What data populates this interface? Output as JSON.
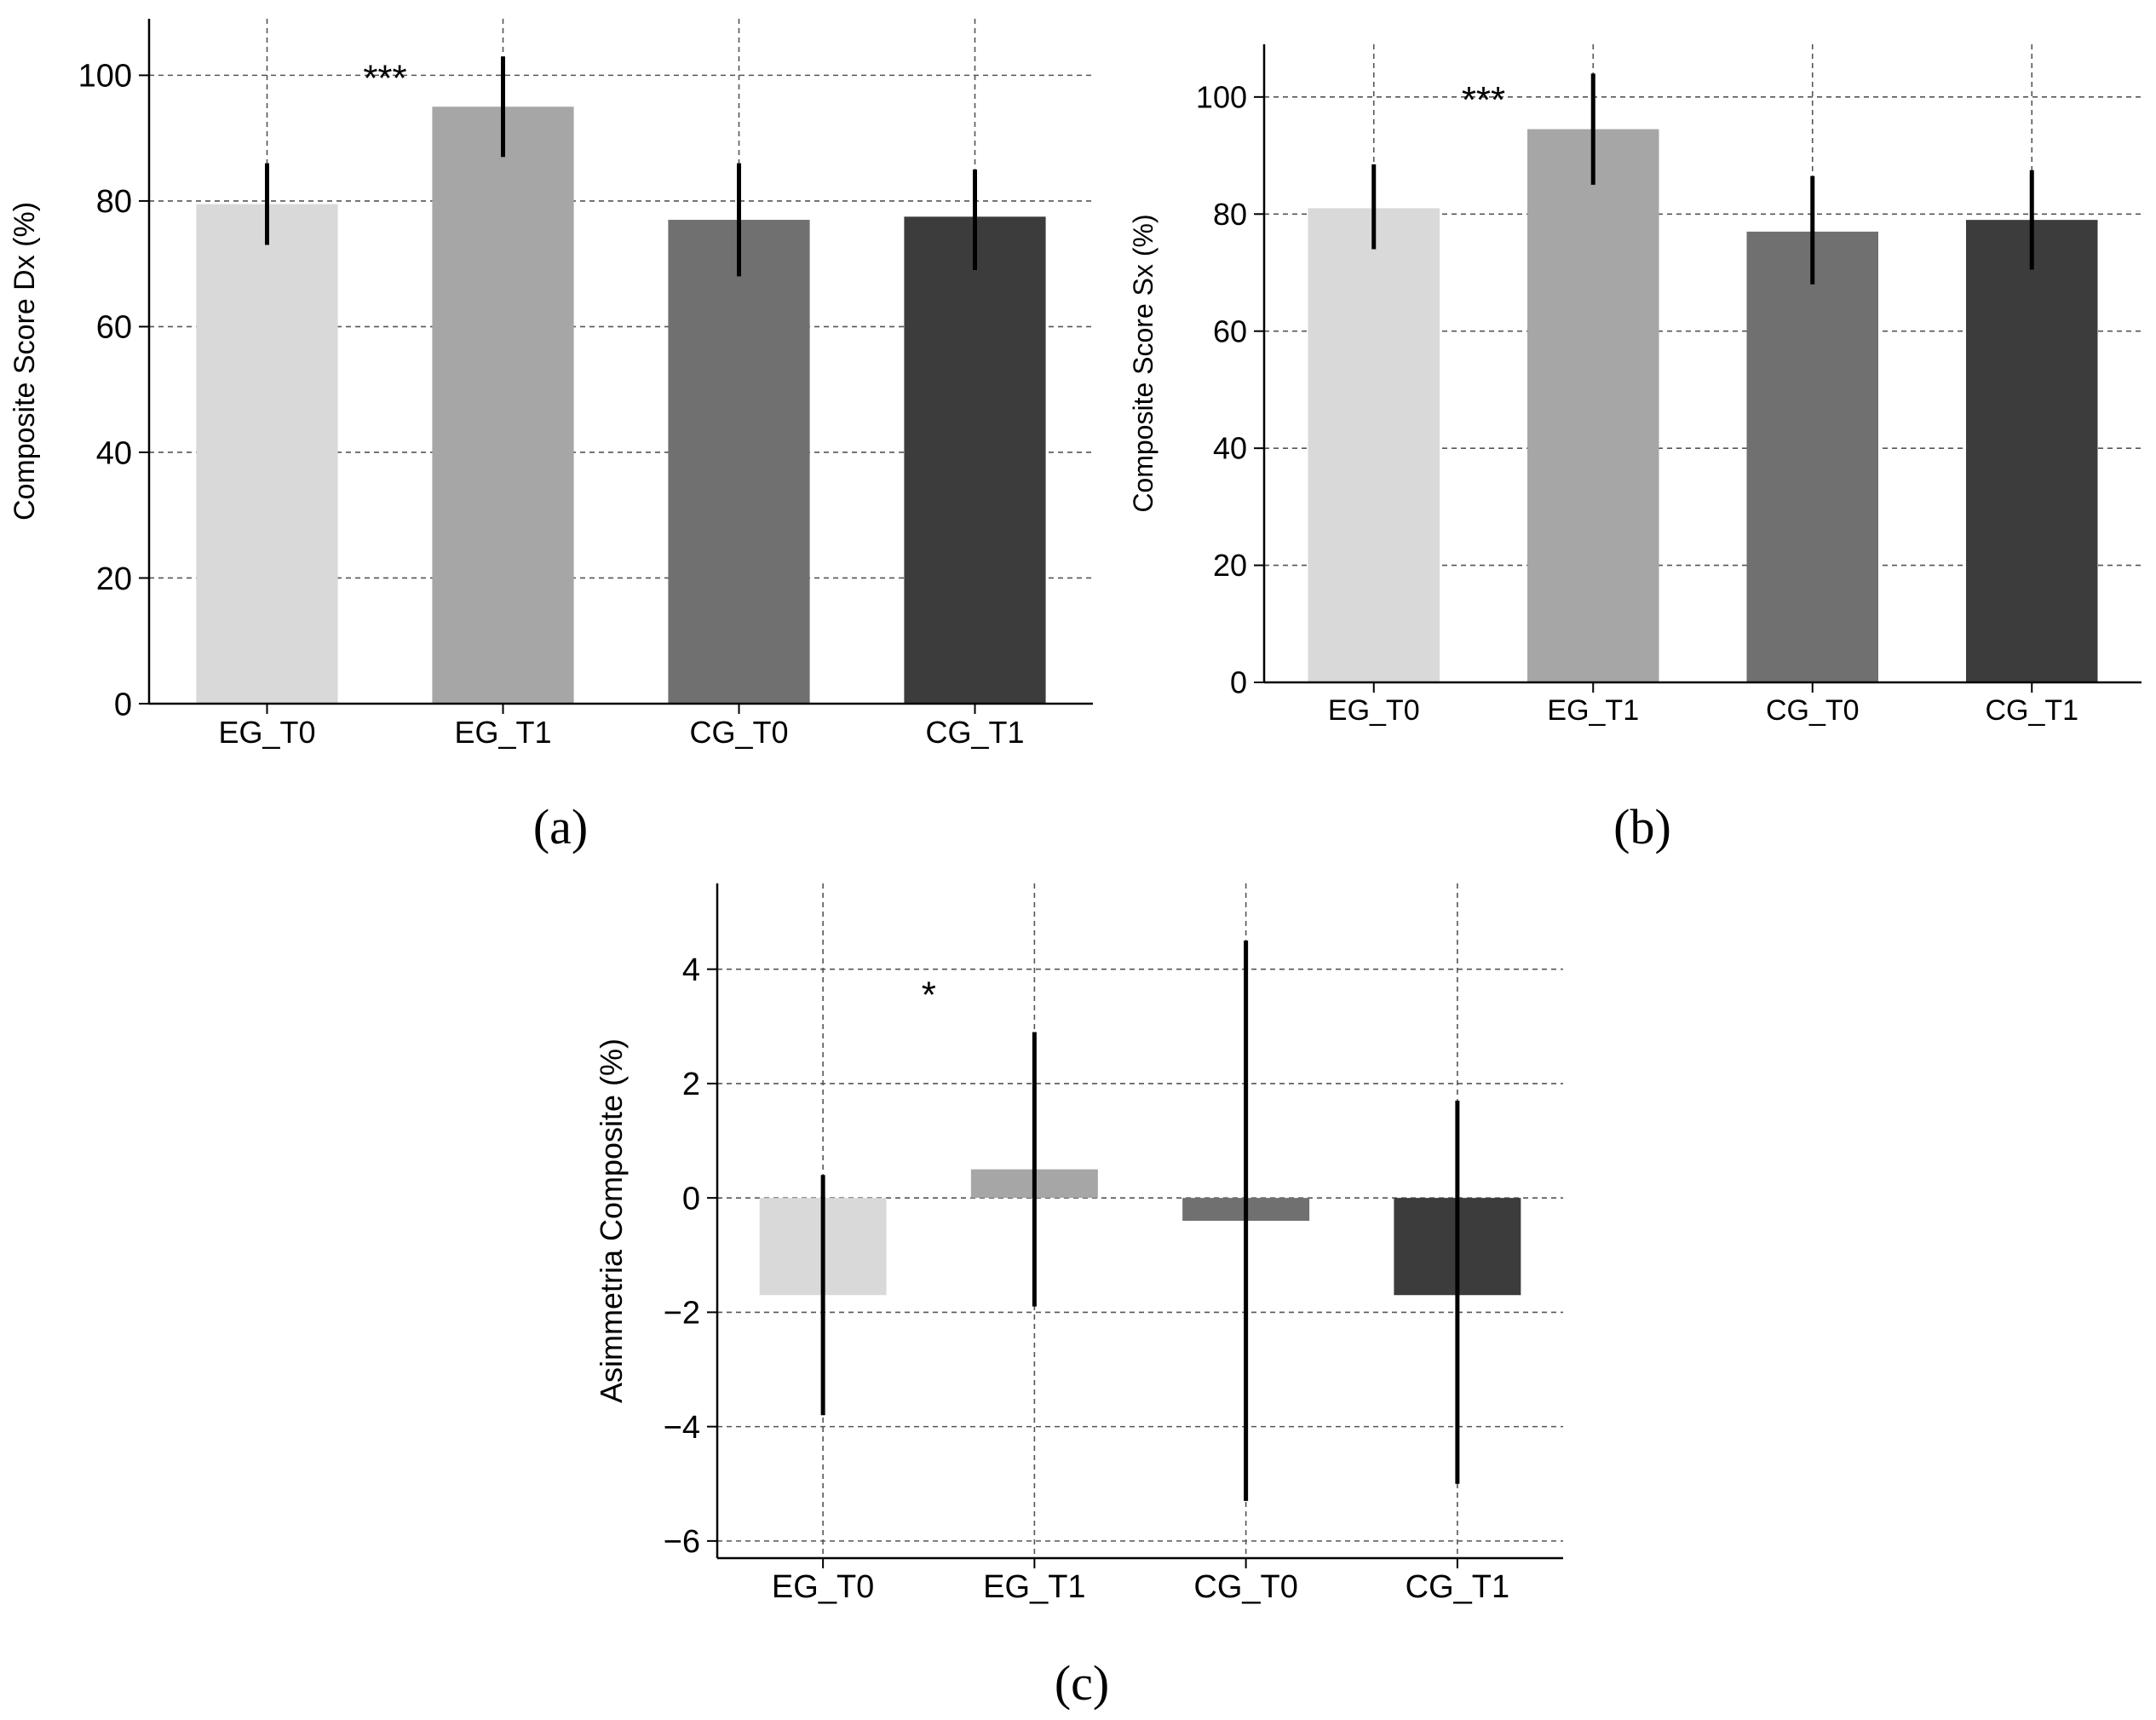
{
  "figure": {
    "charts": [
      {
        "id": "a",
        "panel_label": "(a)",
        "chart_data": {
          "type": "bar",
          "categories": [
            "EG_T0",
            "EG_T1",
            "CG_T0",
            "CG_T1"
          ],
          "values": [
            79.5,
            95.0,
            77.0,
            77.5
          ],
          "errors": [
            [
              73,
              86
            ],
            [
              87,
              103
            ],
            [
              68,
              86
            ],
            [
              69,
              85
            ]
          ],
          "colors": [
            "#d9d9d9",
            "#a6a6a6",
            "#707070",
            "#3c3c3c"
          ],
          "ylabel": "Composite Score Dx (%)",
          "xlabel": "",
          "ylim": [
            0,
            109
          ],
          "yticks": [
            0,
            20,
            40,
            60,
            80,
            100
          ],
          "ytick_labels": [
            "0",
            "20",
            "40",
            "60",
            "80",
            "100"
          ],
          "grid": true,
          "annotation": {
            "text": "***",
            "category_index": 0.5,
            "y": 100
          }
        }
      },
      {
        "id": "b",
        "panel_label": "(b)",
        "chart_data": {
          "type": "bar",
          "categories": [
            "EG_T0",
            "EG_T1",
            "CG_T0",
            "CG_T1"
          ],
          "values": [
            81.0,
            94.5,
            77.0,
            79.0
          ],
          "errors": [
            [
              74,
              88.5
            ],
            [
              85,
              104
            ],
            [
              68,
              86.5
            ],
            [
              70.5,
              87.5
            ]
          ],
          "colors": [
            "#d9d9d9",
            "#a6a6a6",
            "#707070",
            "#3c3c3c"
          ],
          "ylabel": "Composite Score Sx (%)",
          "xlabel": "",
          "ylim": [
            0,
            109
          ],
          "yticks": [
            0,
            20,
            40,
            60,
            80,
            100
          ],
          "ytick_labels": [
            "0",
            "20",
            "40",
            "60",
            "80",
            "100"
          ],
          "grid": true,
          "annotation": {
            "text": "***",
            "category_index": 0.5,
            "y": 100
          }
        }
      },
      {
        "id": "c",
        "panel_label": "(c)",
        "chart_data": {
          "type": "bar",
          "categories": [
            "EG_T0",
            "EG_T1",
            "CG_T0",
            "CG_T1"
          ],
          "values": [
            -1.7,
            0.5,
            -0.4,
            -1.7
          ],
          "errors": [
            [
              -3.8,
              0.4
            ],
            [
              -1.9,
              2.9
            ],
            [
              -5.3,
              4.5
            ],
            [
              -5.0,
              1.7
            ]
          ],
          "colors": [
            "#d9d9d9",
            "#a6a6a6",
            "#707070",
            "#3c3c3c"
          ],
          "ylabel": "Asimmetria Composite (%)",
          "xlabel": "",
          "ylim": [
            -6.3,
            5.5
          ],
          "yticks": [
            -6,
            -4,
            -2,
            0,
            2,
            4
          ],
          "ytick_labels": [
            "−6",
            "−4",
            "−2",
            "0",
            "2",
            "4"
          ],
          "grid": true,
          "annotation": {
            "text": "*",
            "category_index": 0.5,
            "y": 3.6
          }
        }
      }
    ]
  }
}
